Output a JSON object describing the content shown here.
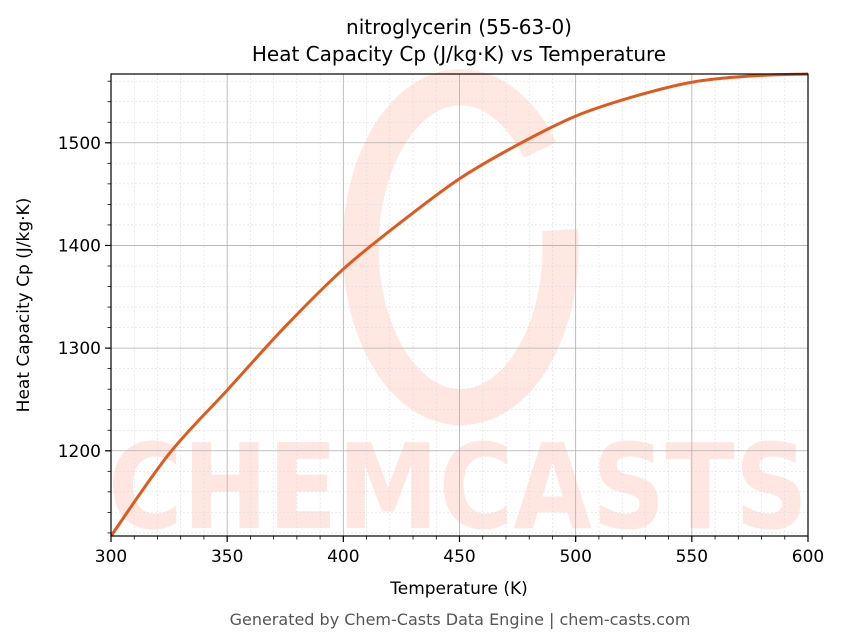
{
  "chart_data": {
    "type": "line",
    "title": "nitroglycerin (55-63-0)",
    "subtitle": "Heat Capacity Cp (J/kg·K) vs Temperature",
    "xlabel": "Temperature (K)",
    "ylabel": "Heat Capacity Cp (J/kg·K)",
    "xlim": [
      300,
      600
    ],
    "ylim": [
      1117,
      1567
    ],
    "xticks": [
      300,
      350,
      400,
      450,
      500,
      550,
      600
    ],
    "yticks": [
      1200,
      1300,
      1400,
      1500
    ],
    "grid": true,
    "series": [
      {
        "color": "#e05a1e",
        "x": [
          300,
          325,
          350,
          375,
          400,
          425,
          450,
          475,
          500,
          525,
          550,
          575,
          600
        ],
        "y": [
          1117,
          1197,
          1259,
          1321,
          1377,
          1423,
          1465,
          1498,
          1526,
          1545,
          1559,
          1565,
          1567
        ]
      }
    ]
  },
  "watermark": "CHEMCASTS",
  "footer": "Generated by Chem-Casts Data Engine | chem-casts.com"
}
